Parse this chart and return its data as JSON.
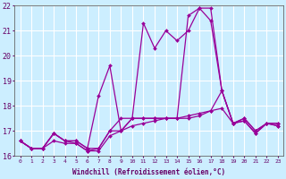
{
  "xlabel": "Windchill (Refroidissement éolien,°C)",
  "background_color": "#cceeff",
  "grid_color": "#aadddd",
  "line_color": "#990099",
  "xlim": [
    -0.5,
    23.5
  ],
  "ylim": [
    16.0,
    22.0
  ],
  "xticks": [
    0,
    1,
    2,
    3,
    4,
    5,
    6,
    7,
    8,
    9,
    10,
    11,
    12,
    13,
    14,
    15,
    16,
    17,
    18,
    19,
    20,
    21,
    22,
    23
  ],
  "yticks": [
    16,
    17,
    18,
    19,
    20,
    21,
    22
  ],
  "series": [
    [
      16.6,
      16.3,
      16.3,
      16.9,
      16.6,
      16.5,
      16.2,
      16.3,
      17.0,
      17.0,
      17.5,
      17.5,
      17.5,
      17.5,
      17.5,
      17.5,
      17.6,
      17.8,
      18.6,
      17.3,
      17.4,
      16.9,
      17.3,
      17.2
    ],
    [
      16.6,
      16.3,
      16.3,
      16.9,
      16.6,
      16.6,
      16.3,
      18.4,
      19.6,
      17.0,
      17.5,
      17.5,
      17.5,
      17.5,
      17.5,
      21.6,
      21.9,
      21.4,
      18.6,
      17.3,
      17.5,
      17.0,
      17.3,
      17.3
    ],
    [
      16.6,
      16.3,
      16.3,
      16.9,
      16.6,
      16.6,
      16.3,
      16.3,
      17.0,
      17.5,
      17.5,
      21.3,
      20.3,
      21.0,
      20.6,
      21.0,
      21.9,
      21.9,
      18.6,
      17.3,
      17.5,
      17.0,
      17.3,
      17.3
    ],
    [
      16.6,
      16.3,
      16.3,
      16.6,
      16.5,
      16.5,
      16.2,
      16.2,
      16.8,
      17.0,
      17.2,
      17.3,
      17.4,
      17.5,
      17.5,
      17.6,
      17.7,
      17.8,
      17.9,
      17.3,
      17.4,
      16.9,
      17.3,
      17.2
    ]
  ]
}
